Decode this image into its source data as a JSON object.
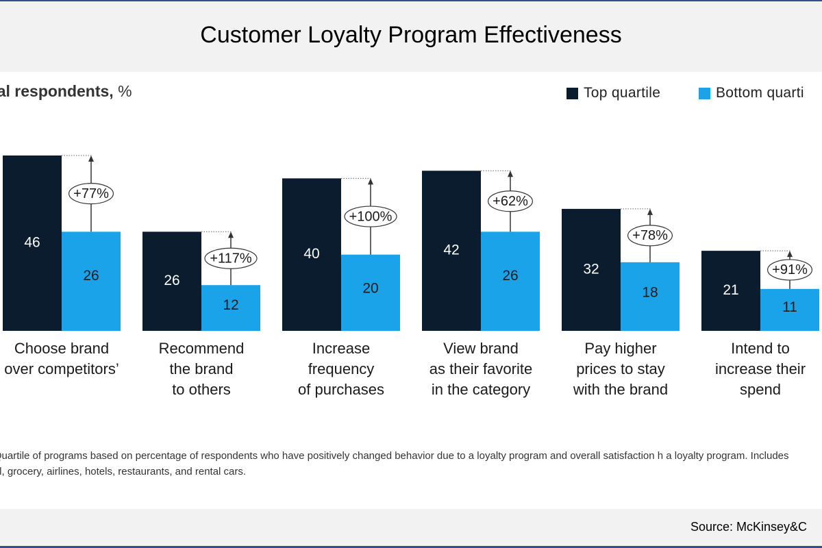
{
  "title": "Customer Loyalty Program Effectiveness",
  "source": "Source: McKinsey&C",
  "colors": {
    "top": "#0b1c2e",
    "bottom": "#1aa3e8",
    "band": "#f2f2f2",
    "frame": "#2f4f8a"
  },
  "chart_data": {
    "type": "bar",
    "subtitle": "otal respondents,",
    "unit": "%",
    "categories": [
      [
        "Choose brand",
        "over competitors’"
      ],
      [
        "Recommend",
        "the brand",
        "to others"
      ],
      [
        "Increase",
        "frequency",
        "of purchases"
      ],
      [
        "View brand",
        "as their favorite",
        "in the category"
      ],
      [
        "Pay higher",
        "prices to stay",
        "with the brand"
      ],
      [
        "Intend to",
        "increase their",
        "spend"
      ]
    ],
    "series": [
      {
        "name": "Top quartile",
        "values": [
          46,
          26,
          40,
          42,
          32,
          21
        ]
      },
      {
        "name": "Bottom quarti",
        "values": [
          26,
          12,
          20,
          26,
          18,
          11
        ]
      }
    ],
    "annotations": [
      "+77%",
      "+117%",
      "+100%",
      "+62%",
      "+78%",
      "+91%"
    ],
    "ylim": [
      0,
      46
    ],
    "legend_position": "top-right",
    "grid": false
  },
  "note": "te: Quartile of programs based on percentage of respondents who have positively changed behavior due to a loyalty program and overall satisfaction h a loyalty program. Includes retail, grocery, airlines, hotels, restaurants, and rental cars."
}
